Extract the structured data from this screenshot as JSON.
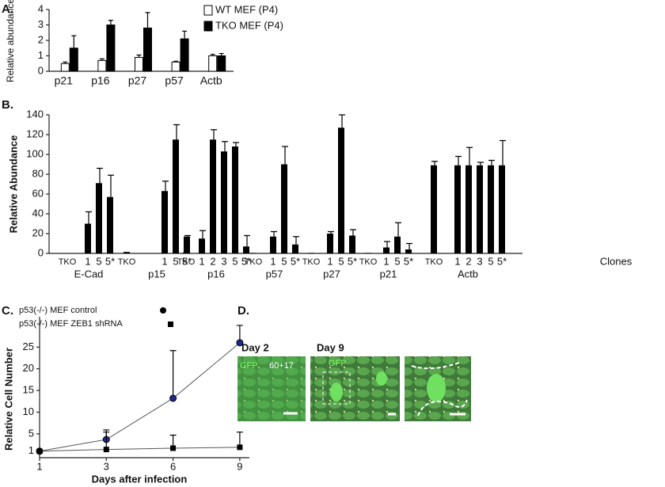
{
  "chart_data": [
    {
      "type": "bar",
      "panel_label": "A.",
      "ylabel": "Relative abundance",
      "categories": [
        "p21",
        "p16",
        "p27",
        "p57",
        "Actb"
      ],
      "series": [
        {
          "name": "WT MEF (P4)",
          "color": "#ffffff",
          "values": [
            0.5,
            0.7,
            0.9,
            0.6,
            1.0
          ],
          "errors": [
            0.1,
            0.1,
            0.15,
            0.05,
            0.1
          ]
        },
        {
          "name": "TKO MEF (P4)",
          "color": "#000000",
          "values": [
            1.5,
            3.0,
            2.8,
            2.1,
            1.0
          ],
          "errors": [
            0.8,
            0.3,
            1.0,
            0.5,
            0.15
          ]
        }
      ],
      "ylim": [
        0,
        4
      ],
      "yticks": [
        0,
        1,
        2,
        3,
        4
      ]
    },
    {
      "type": "grouped-bar",
      "panel_label": "B.",
      "ylabel": "Relative Abundance",
      "xlabel": "Clones",
      "color": "#000000",
      "groups": [
        {
          "name": "E-Cad",
          "categories": [
            "TKO",
            "1",
            "5",
            "5*"
          ],
          "values": [
            0,
            30,
            71,
            57
          ],
          "errors": [
            0,
            12,
            15,
            22
          ]
        },
        {
          "name": "p15",
          "categories": [
            "TKO",
            "1",
            "5",
            "5*"
          ],
          "values": [
            1.5,
            63,
            115,
            17
          ],
          "errors": [
            0,
            10,
            15,
            1
          ]
        },
        {
          "name": "p16",
          "categories": [
            "TKO",
            "1",
            "2",
            "3",
            "5",
            "5*"
          ],
          "values": [
            1,
            15,
            115,
            103,
            108,
            7
          ],
          "errors": [
            0,
            8,
            10,
            10,
            4,
            11
          ]
        },
        {
          "name": "p57",
          "categories": [
            "TKO",
            "1",
            "5",
            "5*"
          ],
          "values": [
            0.5,
            17,
            90,
            9
          ],
          "errors": [
            0,
            5,
            18,
            8
          ]
        },
        {
          "name": "p27",
          "categories": [
            "TKO",
            "1",
            "5",
            "5*"
          ],
          "values": [
            0.5,
            20,
            127,
            18
          ],
          "errors": [
            0,
            2,
            13,
            6
          ]
        },
        {
          "name": "p21",
          "categories": [
            "TKO",
            "1",
            "5",
            "5*"
          ],
          "values": [
            0.5,
            6,
            17,
            4
          ],
          "errors": [
            0,
            6,
            14,
            6
          ]
        },
        {
          "name": "Actb",
          "categories": [
            "TKO",
            "1",
            "2",
            "3",
            "5",
            "5*"
          ],
          "values": [
            89,
            89,
            89,
            89,
            89,
            89
          ],
          "errors": [
            4,
            9,
            18,
            3,
            5,
            25
          ]
        }
      ],
      "ylim": [
        0,
        140
      ],
      "yticks": [
        0,
        20,
        40,
        60,
        80,
        100,
        120,
        140
      ]
    },
    {
      "type": "line",
      "panel_label": "C.",
      "ylabel": "Relative Cell Number",
      "xlabel": "Days after infection",
      "categories": [
        "1",
        "3",
        "6",
        "9"
      ],
      "series": [
        {
          "name": "p53(-/-) MEF control",
          "color": "#1f2a8c",
          "marker": "circle",
          "values": [
            1,
            3.7,
            13.2,
            26
          ],
          "errors": [
            0,
            2.2,
            11,
            4
          ]
        },
        {
          "name": "p53(-/-) MEF ZEB1 shRNA",
          "color": "#000000",
          "marker": "square",
          "values": [
            1,
            1.4,
            1.7,
            1.9
          ],
          "errors": [
            0,
            4,
            3,
            3.5
          ]
        }
      ],
      "ylim": [
        -0.5,
        32
      ],
      "yticks": [
        1,
        5,
        10,
        15,
        20,
        25
      ]
    }
  ],
  "panel_d": {
    "label": "D.",
    "titles": [
      "Day 2",
      "Day 9"
    ],
    "overlays": [
      "GFP",
      "60+17",
      "GFP"
    ]
  }
}
